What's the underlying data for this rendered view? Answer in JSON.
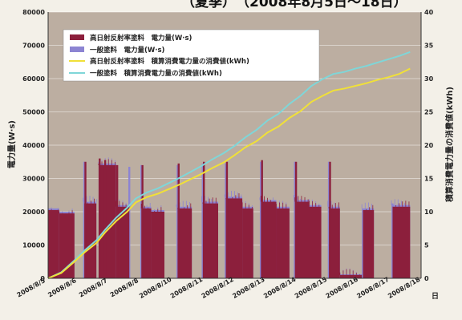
{
  "chart_data": {
    "type": "bar+line",
    "title_fragment": "（夏季）　（2008年8月5日～18日）",
    "ylabel_left": "電力量(W·s)",
    "ylabel_right": "積算消費電力量の消費値(kWh)",
    "xlabel": "日",
    "ylim_left": [
      0,
      80000
    ],
    "ylim_right": [
      0,
      40
    ],
    "y_ticks_left": [
      "0",
      "10000",
      "20000",
      "30000",
      "40000",
      "50000",
      "60000",
      "70000",
      "80000"
    ],
    "y_ticks_right": [
      "0",
      "5",
      "10",
      "15",
      "20",
      "25",
      "30",
      "35",
      "40"
    ],
    "x_ticks": [
      "2008/8/5",
      "2008/8/6",
      "2008/8/7",
      "2008/8/8",
      "2008/8/10",
      "2008/8/11",
      "2008/8/12",
      "2008/8/13",
      "2008/8/14",
      "2008/8/15",
      "2008/8/16",
      "2008/8/17",
      "2008/8/18"
    ],
    "grid": true,
    "legend_position": "top-left",
    "series": [
      {
        "name": "高日射反射率塗料　電力量(W·s)",
        "kind": "bar",
        "axis": "left",
        "color": "#8c1f3c",
        "segments": [
          {
            "start": 0.0,
            "end": 0.5,
            "level": 20500
          },
          {
            "start": 0.5,
            "end": 1.2,
            "level": 19500
          },
          {
            "start": 1.65,
            "end": 2.2,
            "level": 22500
          },
          {
            "start": 2.3,
            "end": 3.1,
            "level": 34000
          },
          {
            "start": 3.1,
            "end": 3.7,
            "level": 21500
          },
          {
            "start": 4.25,
            "end": 4.7,
            "level": 21000
          },
          {
            "start": 4.7,
            "end": 5.3,
            "level": 20000
          },
          {
            "start": 5.9,
            "end": 6.55,
            "level": 21000
          },
          {
            "start": 7.05,
            "end": 7.75,
            "level": 22500
          },
          {
            "start": 8.1,
            "end": 8.85,
            "level": 24000
          },
          {
            "start": 8.85,
            "end": 9.35,
            "level": 21000
          },
          {
            "start": 9.7,
            "end": 10.4,
            "level": 23000
          },
          {
            "start": 10.4,
            "end": 11.0,
            "level": 21000
          },
          {
            "start": 11.25,
            "end": 11.9,
            "level": 23000
          },
          {
            "start": 11.9,
            "end": 12.45,
            "level": 21500
          },
          {
            "start": 12.8,
            "end": 13.3,
            "level": 21000
          },
          {
            "start": 13.3,
            "end": 14.3,
            "level": 1000
          },
          {
            "start": 14.35,
            "end": 14.85,
            "level": 20500
          },
          {
            "start": 15.7,
            "end": 16.5,
            "level": 21500
          }
        ],
        "spikes": [
          {
            "at": 1.7,
            "level": 35000
          },
          {
            "at": 2.35,
            "level": 36000
          },
          {
            "at": 2.6,
            "level": 35500
          },
          {
            "at": 3.15,
            "level": 34000
          },
          {
            "at": 4.3,
            "level": 34000
          },
          {
            "at": 5.95,
            "level": 34500
          },
          {
            "at": 7.1,
            "level": 35000
          },
          {
            "at": 8.15,
            "level": 35000
          },
          {
            "at": 9.75,
            "level": 35500
          },
          {
            "at": 11.3,
            "level": 35000
          },
          {
            "at": 12.85,
            "level": 35000
          }
        ]
      },
      {
        "name": "一般塗料　電力量(W·s)",
        "kind": "bar",
        "axis": "left",
        "color": "#8c84d2",
        "segments": [
          {
            "start": 0.0,
            "end": 0.5,
            "level": 21000
          },
          {
            "start": 0.5,
            "end": 1.2,
            "level": 20000
          },
          {
            "start": 1.6,
            "end": 2.2,
            "level": 23000
          },
          {
            "start": 2.3,
            "end": 3.1,
            "level": 34500
          },
          {
            "start": 3.1,
            "end": 3.7,
            "level": 22000
          },
          {
            "start": 4.2,
            "end": 4.7,
            "level": 21500
          },
          {
            "start": 4.7,
            "end": 5.3,
            "level": 20500
          },
          {
            "start": 5.85,
            "end": 6.55,
            "level": 21500
          },
          {
            "start": 7.0,
            "end": 7.75,
            "level": 23000
          },
          {
            "start": 8.05,
            "end": 8.85,
            "level": 24500
          },
          {
            "start": 8.85,
            "end": 9.35,
            "level": 21500
          },
          {
            "start": 9.65,
            "end": 10.4,
            "level": 23500
          },
          {
            "start": 10.4,
            "end": 11.0,
            "level": 21500
          },
          {
            "start": 11.2,
            "end": 11.9,
            "level": 23500
          },
          {
            "start": 11.9,
            "end": 12.45,
            "level": 22000
          },
          {
            "start": 12.75,
            "end": 13.3,
            "level": 21500
          },
          {
            "start": 13.3,
            "end": 14.3,
            "level": 1200
          },
          {
            "start": 14.3,
            "end": 14.85,
            "level": 21000
          },
          {
            "start": 15.65,
            "end": 16.5,
            "level": 22000
          }
        ],
        "spikes": [
          {
            "at": 1.65,
            "level": 35000
          },
          {
            "at": 3.7,
            "level": 33500
          },
          {
            "at": 4.25,
            "level": 34000
          },
          {
            "at": 5.9,
            "level": 34000
          },
          {
            "at": 7.05,
            "level": 34500
          },
          {
            "at": 8.1,
            "level": 34500
          },
          {
            "at": 9.7,
            "level": 35000
          },
          {
            "at": 11.25,
            "level": 35000
          },
          {
            "at": 12.8,
            "level": 35000
          },
          {
            "at": 15.7,
            "level": 22500
          }
        ]
      },
      {
        "name": "高日射反射率塗料　積算消費電力量の消費値(kWh)",
        "kind": "line",
        "axis": "right",
        "color": "#f0e038",
        "x": [
          0,
          0.6,
          1.2,
          1.7,
          2.2,
          2.6,
          3.1,
          3.6,
          4.0,
          4.5,
          5.0,
          5.5,
          6.0,
          6.5,
          7.0,
          7.5,
          8.0,
          8.5,
          9.0,
          9.5,
          10.0,
          10.5,
          11.0,
          11.5,
          12.0,
          12.5,
          13.0,
          13.5,
          14.0,
          14.5,
          15.0,
          15.5,
          16.0,
          16.5
        ],
        "y": [
          0,
          0.8,
          2.5,
          4.0,
          5.3,
          6.9,
          8.6,
          10.0,
          11.4,
          12.2,
          12.7,
          13.4,
          14.1,
          14.9,
          15.7,
          16.6,
          17.4,
          18.5,
          19.7,
          20.6,
          21.9,
          22.8,
          24.1,
          25.1,
          26.5,
          27.4,
          28.2,
          28.5,
          28.9,
          29.3,
          29.8,
          30.2,
          30.7,
          31.5
        ]
      },
      {
        "name": "一般塗料　積算消費電力量の消費値(kWh)",
        "kind": "line",
        "axis": "right",
        "color": "#7fd6d8",
        "x": [
          0,
          0.6,
          1.2,
          1.7,
          2.2,
          2.6,
          3.1,
          3.6,
          4.0,
          4.5,
          5.0,
          5.5,
          6.0,
          6.5,
          7.0,
          7.5,
          8.0,
          8.5,
          9.0,
          9.5,
          10.0,
          10.5,
          11.0,
          11.5,
          12.0,
          12.5,
          13.0,
          13.5,
          14.0,
          14.5,
          15.0,
          15.5,
          16.0,
          16.5
        ],
        "y": [
          0,
          0.9,
          2.7,
          4.3,
          5.7,
          7.3,
          9.1,
          10.6,
          12.0,
          12.9,
          13.5,
          14.3,
          15.1,
          16.0,
          16.9,
          17.9,
          18.8,
          19.9,
          21.2,
          22.3,
          23.7,
          24.7,
          26.2,
          27.4,
          28.9,
          29.9,
          30.7,
          31.0,
          31.5,
          31.9,
          32.4,
          32.9,
          33.4,
          34.0
        ]
      }
    ]
  }
}
